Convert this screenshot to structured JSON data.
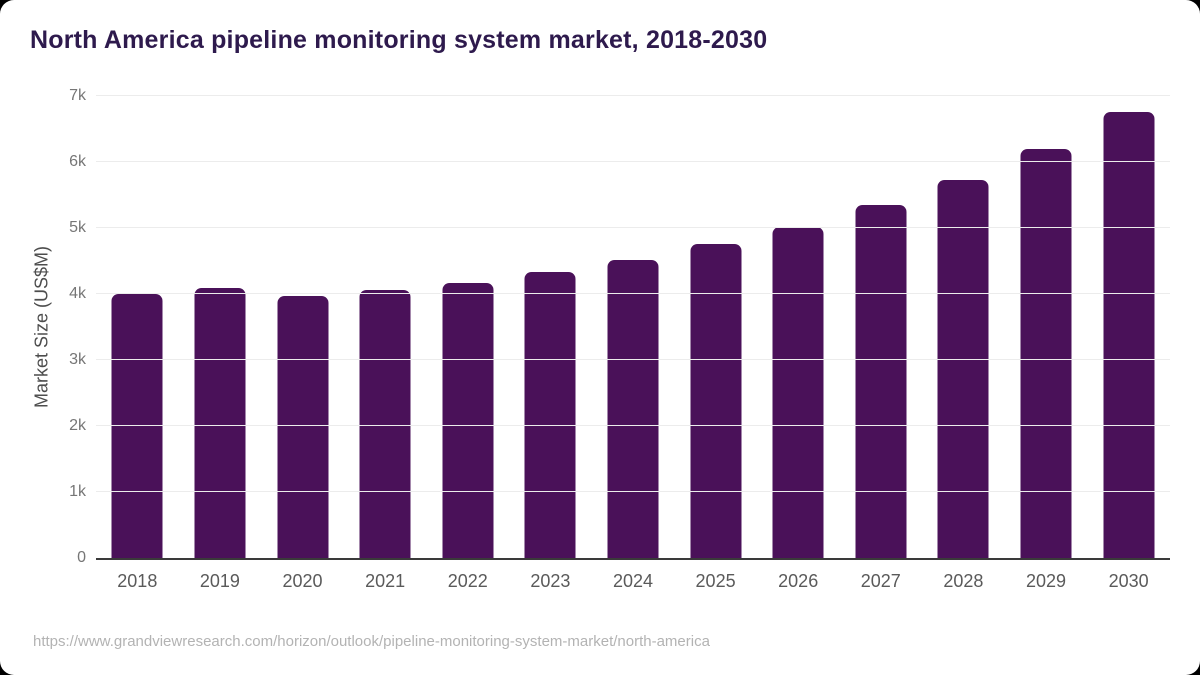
{
  "title": "North America pipeline monitoring system market, 2018-2030",
  "footer": {
    "url": "https://www.grandviewresearch.com/horizon/outlook/pipeline-monitoring-system-market/north-america"
  },
  "chart_data": {
    "type": "bar",
    "title": "North America pipeline monitoring system market, 2018-2030",
    "categories": [
      "2018",
      "2019",
      "2020",
      "2021",
      "2022",
      "2023",
      "2024",
      "2025",
      "2026",
      "2027",
      "2028",
      "2029",
      "2030"
    ],
    "values": [
      4000,
      4090,
      3975,
      4060,
      4165,
      4335,
      4510,
      4765,
      5020,
      5345,
      5725,
      6190,
      6755
    ],
    "xlabel": "",
    "ylabel": "Market Size (US$M)",
    "ylim": [
      0,
      7000
    ],
    "yticks": [
      {
        "value": 0,
        "label": "0"
      },
      {
        "value": 1000,
        "label": "1k"
      },
      {
        "value": 2000,
        "label": "2k"
      },
      {
        "value": 3000,
        "label": "3k"
      },
      {
        "value": 4000,
        "label": "4k"
      },
      {
        "value": 5000,
        "label": "5k"
      },
      {
        "value": 6000,
        "label": "6k"
      },
      {
        "value": 7000,
        "label": "7k"
      }
    ],
    "grid": true,
    "legend": false,
    "bar_corner_radius_px": 7
  },
  "colors": {
    "bar": "#4a1159",
    "title": "#2e1a4d",
    "gridline": "#ececec",
    "axis_line": "#3a3a3a",
    "y_tick_label": "#767676",
    "x_tick_label": "#5a5a5a",
    "y_axis_title": "#4d4d4d",
    "url_text": "#b3b3b3",
    "card_background": "#ffffff",
    "page_background": "#000000"
  }
}
